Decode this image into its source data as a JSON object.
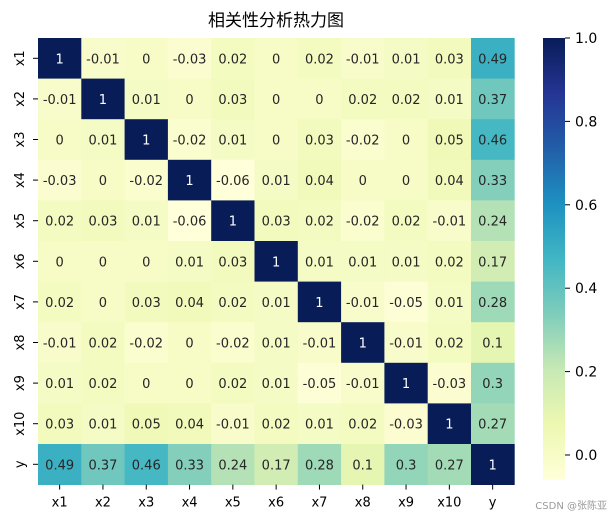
{
  "chart_data": {
    "type": "heatmap",
    "title": "相关性分析热力图",
    "row_labels": [
      "x1",
      "x2",
      "x3",
      "x4",
      "x5",
      "x6",
      "x7",
      "x8",
      "x9",
      "x10",
      "y"
    ],
    "col_labels": [
      "x1",
      "x2",
      "x3",
      "x4",
      "x5",
      "x6",
      "x7",
      "x8",
      "x9",
      "x10",
      "y"
    ],
    "values": [
      [
        1,
        -0.01,
        0,
        -0.03,
        0.02,
        0,
        0.02,
        -0.01,
        0.01,
        0.03,
        0.49
      ],
      [
        -0.01,
        1,
        0.01,
        0,
        0.03,
        0,
        0,
        0.02,
        0.02,
        0.01,
        0.37
      ],
      [
        0,
        0.01,
        1,
        -0.02,
        0.01,
        0,
        0.03,
        -0.02,
        0,
        0.05,
        0.46
      ],
      [
        -0.03,
        0,
        -0.02,
        1,
        -0.06,
        0.01,
        0.04,
        0,
        0,
        0.04,
        0.33
      ],
      [
        0.02,
        0.03,
        0.01,
        -0.06,
        1,
        0.03,
        0.02,
        -0.02,
        0.02,
        -0.01,
        0.24
      ],
      [
        0,
        0,
        0,
        0.01,
        0.03,
        1,
        0.01,
        0.01,
        0.01,
        0.02,
        0.17
      ],
      [
        0.02,
        0,
        0.03,
        0.04,
        0.02,
        0.01,
        1,
        -0.01,
        -0.05,
        0.01,
        0.28
      ],
      [
        -0.01,
        0.02,
        -0.02,
        0,
        -0.02,
        0.01,
        -0.01,
        1,
        -0.01,
        0.02,
        0.1
      ],
      [
        0.01,
        0.02,
        0,
        0,
        0.02,
        0.01,
        -0.05,
        -0.01,
        1,
        -0.03,
        0.3
      ],
      [
        0.03,
        0.01,
        0.05,
        0.04,
        -0.01,
        0.02,
        0.01,
        0.02,
        -0.03,
        1,
        0.27
      ],
      [
        0.49,
        0.37,
        0.46,
        0.33,
        0.24,
        0.17,
        0.28,
        0.1,
        0.3,
        0.27,
        1
      ]
    ],
    "colormap": "YlGnBu",
    "colormap_stops": [
      "#ffffd9",
      "#edf8b1",
      "#c7e9b4",
      "#7fcdbb",
      "#41b6c4",
      "#1d91c0",
      "#225ea8",
      "#253494",
      "#081d58"
    ],
    "value_range": [
      -0.06,
      1.0
    ],
    "colorbar_ticks": [
      0.0,
      0.2,
      0.4,
      0.6,
      0.8,
      1.0
    ],
    "colorbar_tick_labels": [
      "0.0",
      "0.2",
      "0.4",
      "0.6",
      "0.8",
      "1.0"
    ]
  },
  "watermark": "CSDN @张陈亚"
}
